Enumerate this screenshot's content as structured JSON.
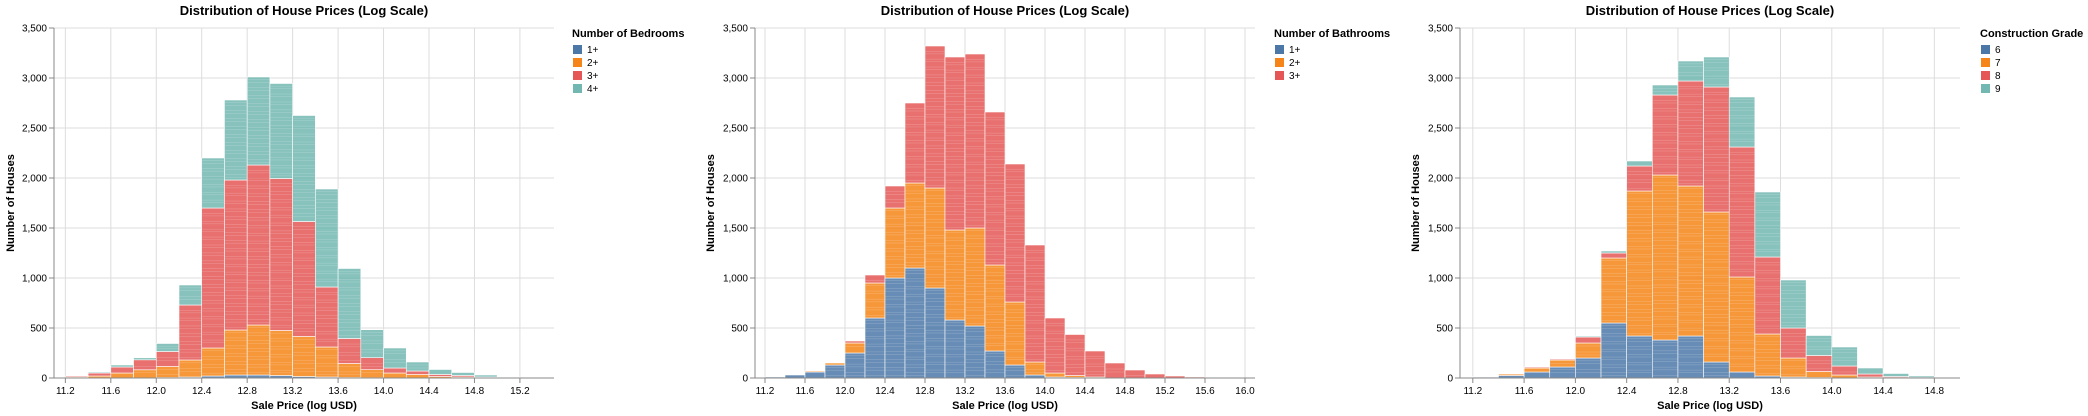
{
  "colors": {
    "blue": "#4c78a8",
    "orange": "#f58518",
    "red": "#e45756",
    "teal": "#72b7b2",
    "grid": "#dddddd",
    "axis": "#888888"
  },
  "chart_data": [
    {
      "type": "bar",
      "stacked": true,
      "title": "Distribution of House Prices (Log Scale)",
      "xlabel": "Sale Price (log USD)",
      "ylabel": "Number of Houses",
      "xlim": [
        11.1,
        15.5
      ],
      "ylim": [
        0,
        3500
      ],
      "xticks": [
        11.2,
        11.6,
        12.0,
        12.4,
        12.8,
        13.2,
        13.6,
        14.0,
        14.4,
        14.8,
        15.2
      ],
      "yticks": [
        0,
        500,
        1000,
        1500,
        2000,
        2500,
        3000,
        3500
      ],
      "ytick_labels": [
        "0",
        "500",
        "1,000",
        "1,500",
        "2,000",
        "2,500",
        "3,000",
        "3,500"
      ],
      "grid": true,
      "legend": {
        "title": "Number of Bedrooms",
        "position": "right"
      },
      "bin_width": 0.2,
      "bins": [
        11.2,
        11.4,
        11.6,
        11.8,
        12.0,
        12.2,
        12.4,
        12.6,
        12.8,
        13.0,
        13.2,
        13.4,
        13.6,
        13.8,
        14.0,
        14.2,
        14.4,
        14.6,
        14.8,
        15.0
      ],
      "series": [
        {
          "name": "1+",
          "color": "#4c78a8",
          "values": [
            0,
            0,
            0,
            2,
            5,
            10,
            20,
            30,
            30,
            25,
            15,
            10,
            5,
            3,
            0,
            0,
            0,
            0,
            0,
            0
          ]
        },
        {
          "name": "2+",
          "color": "#f58518",
          "values": [
            10,
            20,
            50,
            80,
            110,
            170,
            280,
            450,
            500,
            450,
            400,
            300,
            140,
            80,
            50,
            35,
            15,
            10,
            5,
            0
          ]
        },
        {
          "name": "3+",
          "color": "#e45756",
          "values": [
            10,
            30,
            60,
            100,
            150,
            550,
            1400,
            1500,
            1600,
            1520,
            1150,
            600,
            250,
            120,
            50,
            35,
            20,
            15,
            5,
            5
          ]
        },
        {
          "name": "4+",
          "color": "#72b7b2",
          "values": [
            0,
            10,
            20,
            20,
            80,
            200,
            500,
            800,
            880,
            950,
            1060,
            980,
            700,
            280,
            200,
            90,
            50,
            30,
            20,
            5
          ]
        }
      ]
    },
    {
      "type": "bar",
      "stacked": true,
      "title": "Distribution of House Prices (Log Scale)",
      "xlabel": "Sale Price (log USD)",
      "ylabel": "Number of Houses",
      "xlim": [
        11.1,
        16.1
      ],
      "ylim": [
        0,
        3500
      ],
      "xticks": [
        11.2,
        11.6,
        12.0,
        12.4,
        12.8,
        13.2,
        13.6,
        14.0,
        14.4,
        14.8,
        15.2,
        15.6,
        16.0
      ],
      "yticks": [
        0,
        500,
        1000,
        1500,
        2000,
        2500,
        3000,
        3500
      ],
      "ytick_labels": [
        "0",
        "500",
        "1,000",
        "1,500",
        "2,000",
        "2,500",
        "3,000",
        "3,500"
      ],
      "grid": true,
      "legend": {
        "title": "Number of Bathrooms",
        "position": "right"
      },
      "bin_width": 0.2,
      "bins": [
        11.2,
        11.4,
        11.6,
        11.8,
        12.0,
        12.2,
        12.4,
        12.6,
        12.8,
        13.0,
        13.2,
        13.4,
        13.6,
        13.8,
        14.0,
        14.2,
        14.4,
        14.6,
        14.8,
        15.0,
        15.2,
        15.4,
        15.6,
        15.8
      ],
      "series": [
        {
          "name": "1+",
          "color": "#4c78a8",
          "values": [
            10,
            30,
            60,
            130,
            250,
            600,
            1000,
            1100,
            900,
            580,
            520,
            270,
            130,
            30,
            10,
            5,
            0,
            0,
            0,
            0,
            0,
            0,
            0,
            0
          ]
        },
        {
          "name": "2+",
          "color": "#f58518",
          "values": [
            0,
            0,
            10,
            20,
            100,
            350,
            700,
            850,
            1000,
            900,
            980,
            860,
            630,
            130,
            40,
            20,
            10,
            0,
            0,
            0,
            0,
            0,
            0,
            0
          ]
        },
        {
          "name": "3+",
          "color": "#e45756",
          "values": [
            0,
            0,
            0,
            0,
            20,
            80,
            220,
            800,
            1420,
            1730,
            1740,
            1530,
            1380,
            1170,
            550,
            410,
            260,
            150,
            80,
            40,
            20,
            10,
            5,
            2
          ]
        }
      ]
    },
    {
      "type": "bar",
      "stacked": true,
      "title": "Distribution of House Prices (Log Scale)",
      "xlabel": "Sale Price (log USD)",
      "ylabel": "Number of Houses",
      "xlim": [
        11.1,
        15.0
      ],
      "ylim": [
        0,
        3500
      ],
      "xticks": [
        11.2,
        11.6,
        12.0,
        12.4,
        12.8,
        13.2,
        13.6,
        14.0,
        14.4,
        14.8
      ],
      "yticks": [
        0,
        500,
        1000,
        1500,
        2000,
        2500,
        3000,
        3500
      ],
      "ytick_labels": [
        "0",
        "500",
        "1,000",
        "1,500",
        "2,000",
        "2,500",
        "3,000",
        "3,500"
      ],
      "grid": true,
      "legend": {
        "title": "Construction Grade",
        "position": "right"
      },
      "bin_width": 0.2,
      "bins": [
        11.2,
        11.4,
        11.6,
        11.8,
        12.0,
        12.2,
        12.4,
        12.6,
        12.8,
        13.0,
        13.2,
        13.4,
        13.6,
        13.8,
        14.0,
        14.2,
        14.4,
        14.6
      ],
      "series": [
        {
          "name": "6",
          "color": "#4c78a8",
          "values": [
            10,
            25,
            60,
            110,
            200,
            550,
            420,
            380,
            420,
            160,
            60,
            20,
            10,
            5,
            0,
            0,
            0,
            0
          ]
        },
        {
          "name": "7",
          "color": "#f58518",
          "values": [
            5,
            15,
            40,
            70,
            150,
            650,
            1450,
            1650,
            1500,
            1500,
            950,
            420,
            190,
            60,
            30,
            10,
            5,
            0
          ]
        },
        {
          "name": "8",
          "color": "#e45756",
          "values": [
            0,
            5,
            10,
            10,
            60,
            50,
            250,
            800,
            1050,
            1250,
            1300,
            770,
            300,
            160,
            90,
            30,
            10,
            5
          ]
        },
        {
          "name": "9",
          "color": "#72b7b2",
          "values": [
            0,
            0,
            0,
            0,
            10,
            20,
            50,
            100,
            200,
            300,
            500,
            650,
            480,
            200,
            190,
            60,
            30,
            15
          ]
        }
      ]
    }
  ]
}
